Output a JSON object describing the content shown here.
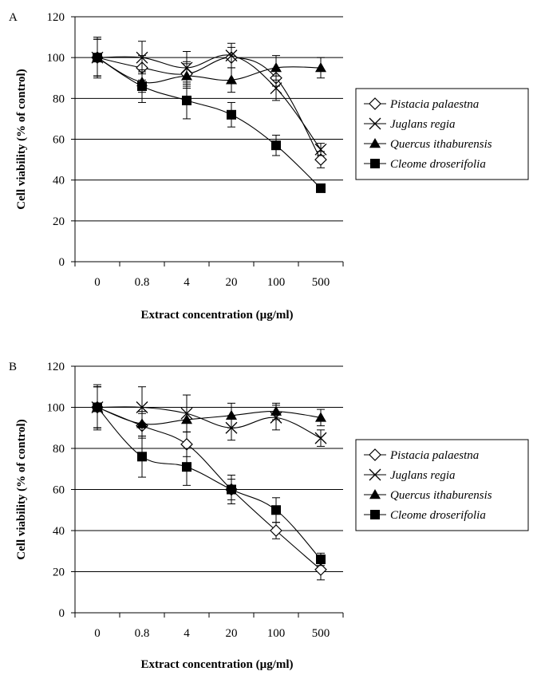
{
  "chart_data": [
    {
      "panel": "A",
      "type": "line",
      "categories": [
        "0",
        "0.8",
        "4",
        "20",
        "100",
        "500"
      ],
      "xlabel": "Extract concentration (µg/ml)",
      "ylabel": "Cell viability (% of control)",
      "ylim": [
        0,
        120
      ],
      "yticks": [
        0,
        20,
        40,
        60,
        80,
        100,
        120
      ],
      "grid": "horizontal",
      "legend_position": "right",
      "series": [
        {
          "name": "Pistacia palaestna",
          "marker": "diamond-open",
          "values": [
            100,
            95,
            92,
            100,
            90,
            50
          ],
          "errors": [
            9,
            6,
            6,
            5,
            4,
            4
          ]
        },
        {
          "name": "Juglans regia",
          "marker": "x",
          "values": [
            100,
            100,
            95,
            101,
            85,
            55
          ],
          "errors": [
            9,
            8,
            8,
            6,
            6,
            3
          ]
        },
        {
          "name": "Quercus ithaburensis",
          "marker": "triangle-filled",
          "values": [
            100,
            88,
            91,
            89,
            95,
            95
          ],
          "errors": [
            10,
            5,
            6,
            6,
            6,
            5
          ]
        },
        {
          "name": "Cleome droserifolia",
          "marker": "square-filled",
          "values": [
            100,
            86,
            79,
            72,
            57,
            36
          ],
          "errors": [
            9,
            8,
            9,
            6,
            5,
            2
          ]
        }
      ]
    },
    {
      "panel": "B",
      "type": "line",
      "categories": [
        "0",
        "0.8",
        "4",
        "20",
        "100",
        "500"
      ],
      "xlabel": "Extract concentration (µg/ml)",
      "ylabel": "Cell viability (% of control)",
      "ylim": [
        0,
        120
      ],
      "yticks": [
        0,
        20,
        40,
        60,
        80,
        100,
        120
      ],
      "grid": "horizontal",
      "legend_position": "right",
      "series": [
        {
          "name": "Pistacia palaestna",
          "marker": "diamond-open",
          "values": [
            100,
            91,
            82,
            60,
            40,
            21
          ],
          "errors": [
            10,
            6,
            6,
            5,
            4,
            5
          ]
        },
        {
          "name": "Juglans regia",
          "marker": "x",
          "values": [
            100,
            100,
            97,
            90,
            95,
            85
          ],
          "errors": [
            10,
            10,
            9,
            6,
            6,
            4
          ]
        },
        {
          "name": "Quercus ithaburensis",
          "marker": "triangle-filled",
          "values": [
            100,
            92,
            94,
            96,
            98,
            95
          ],
          "errors": [
            10,
            6,
            6,
            6,
            4,
            4
          ]
        },
        {
          "name": "Cleome droserifolia",
          "marker": "square-filled",
          "values": [
            100,
            76,
            71,
            60,
            50,
            26
          ],
          "errors": [
            11,
            10,
            9,
            7,
            6,
            3
          ]
        }
      ]
    }
  ]
}
